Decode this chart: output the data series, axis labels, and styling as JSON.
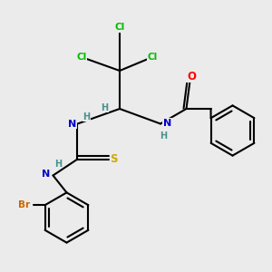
{
  "bg_color": "#ebebeb",
  "atom_colors": {
    "C": "#000000",
    "N": "#0000cc",
    "O": "#ff0000",
    "S": "#ccaa00",
    "Cl": "#00bb00",
    "Br": "#cc6600",
    "H": "#4a9090"
  }
}
